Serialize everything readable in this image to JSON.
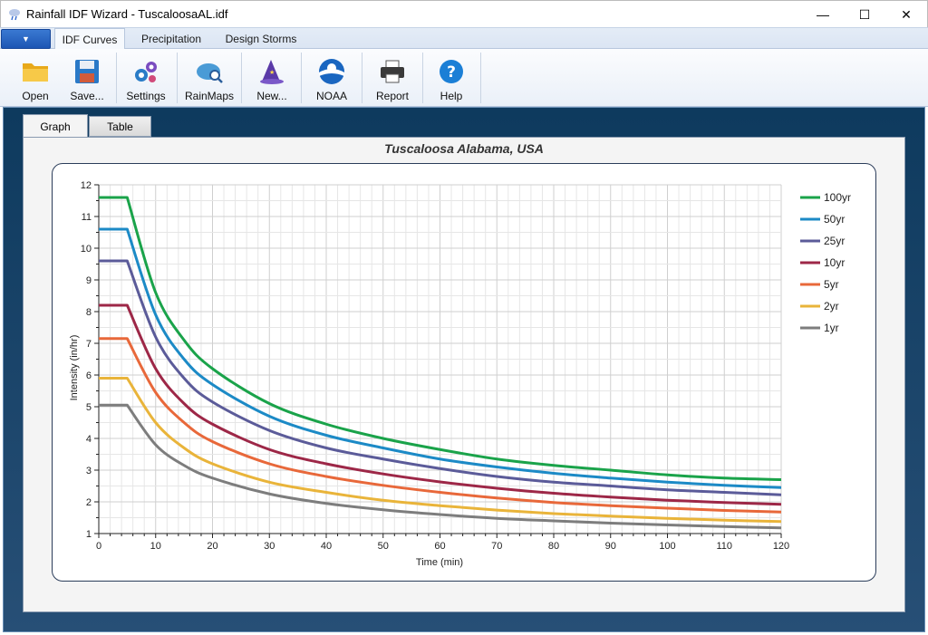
{
  "window": {
    "title": "Rainfall IDF Wizard - TuscaloosaAL.idf",
    "minimize": "—",
    "maximize": "☐",
    "close": "✕"
  },
  "menu_tabs": [
    "IDF Curves",
    "Precipitation",
    "Design Storms"
  ],
  "toolbar": {
    "open": "Open",
    "save": "Save...",
    "settings": "Settings",
    "rainmaps": "RainMaps",
    "new": "New...",
    "noaa": "NOAA",
    "report": "Report",
    "help": "Help"
  },
  "view_tabs": {
    "graph": "Graph",
    "table": "Table"
  },
  "colors": {
    "100yr": "#1aa34a",
    "50yr": "#1c8ac6",
    "25yr": "#5b5b99",
    "10yr": "#9d2747",
    "5yr": "#e8683a",
    "2yr": "#e9b43a",
    "1yr": "#7d7d7d"
  },
  "chart_data": {
    "type": "line",
    "title": "Tuscaloosa Alabama,  USA",
    "xlabel": "Time (min)",
    "ylabel": "Intensity (in/hr)",
    "xlim": [
      0,
      120
    ],
    "ylim": [
      1,
      12
    ],
    "xticks": [
      0,
      10,
      20,
      30,
      40,
      50,
      60,
      70,
      80,
      90,
      100,
      110,
      120
    ],
    "yticks": [
      1,
      2,
      3,
      4,
      5,
      6,
      7,
      8,
      9,
      10,
      11,
      12
    ],
    "grid": true,
    "legend_position": "right",
    "x": [
      0,
      5,
      10,
      15,
      20,
      30,
      40,
      50,
      60,
      70,
      80,
      90,
      100,
      110,
      120
    ],
    "series": [
      {
        "name": "100yr",
        "values": [
          11.6,
          11.6,
          8.6,
          7.1,
          6.2,
          5.1,
          4.45,
          4.0,
          3.65,
          3.35,
          3.15,
          3.0,
          2.85,
          2.75,
          2.7
        ]
      },
      {
        "name": "50yr",
        "values": [
          10.6,
          10.6,
          7.9,
          6.5,
          5.7,
          4.7,
          4.1,
          3.7,
          3.35,
          3.1,
          2.9,
          2.75,
          2.62,
          2.52,
          2.45
        ]
      },
      {
        "name": "25yr",
        "values": [
          9.6,
          9.6,
          7.2,
          5.9,
          5.15,
          4.25,
          3.7,
          3.35,
          3.05,
          2.8,
          2.62,
          2.5,
          2.38,
          2.3,
          2.22
        ]
      },
      {
        "name": "10yr",
        "values": [
          8.2,
          8.2,
          6.2,
          5.1,
          4.45,
          3.65,
          3.2,
          2.88,
          2.63,
          2.43,
          2.27,
          2.15,
          2.05,
          1.98,
          1.92
        ]
      },
      {
        "name": "5yr",
        "values": [
          7.15,
          7.15,
          5.45,
          4.5,
          3.9,
          3.2,
          2.8,
          2.52,
          2.3,
          2.12,
          1.98,
          1.88,
          1.8,
          1.73,
          1.68
        ]
      },
      {
        "name": "2yr",
        "values": [
          5.9,
          5.9,
          4.5,
          3.7,
          3.2,
          2.62,
          2.3,
          2.05,
          1.88,
          1.74,
          1.63,
          1.55,
          1.48,
          1.42,
          1.38
        ]
      },
      {
        "name": "1yr",
        "values": [
          5.05,
          5.05,
          3.8,
          3.15,
          2.75,
          2.25,
          1.95,
          1.75,
          1.6,
          1.48,
          1.4,
          1.33,
          1.27,
          1.22,
          1.18
        ]
      }
    ]
  }
}
